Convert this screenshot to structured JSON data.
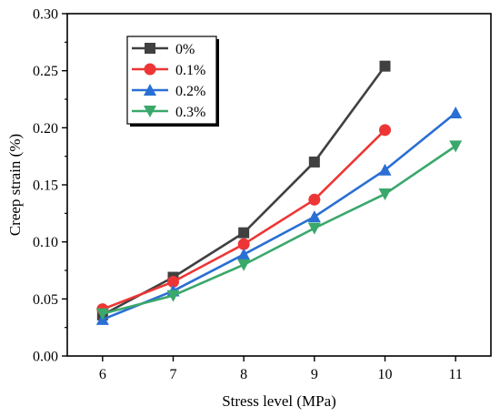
{
  "chart_data": {
    "type": "line",
    "title": "",
    "xlabel": "Stress level (MPa)",
    "ylabel": "Creep strain (%)",
    "xlim": [
      5.5,
      11.5
    ],
    "ylim": [
      0,
      0.3
    ],
    "xticks": [
      6,
      7,
      8,
      9,
      10,
      11
    ],
    "xtick_labels": [
      "6",
      "7",
      "8",
      "9",
      "10",
      "11"
    ],
    "yticks": [
      0,
      0.05,
      0.1,
      0.15,
      0.2,
      0.25,
      0.3
    ],
    "ytick_labels": [
      "0.00",
      "0.05",
      "0.10",
      "0.15",
      "0.20",
      "0.25",
      "0.30"
    ],
    "grid": false,
    "legend_position": "top-left",
    "series": [
      {
        "name": "0%",
        "color": "#404040",
        "marker": "square",
        "x": [
          6,
          7,
          8,
          9,
          10
        ],
        "y": [
          0.036,
          0.069,
          0.108,
          0.17,
          0.254
        ]
      },
      {
        "name": "0.1%",
        "color": "#ee3535",
        "marker": "circle",
        "x": [
          6,
          7,
          8,
          9,
          10
        ],
        "y": [
          0.041,
          0.065,
          0.098,
          0.137,
          0.198
        ]
      },
      {
        "name": "0.2%",
        "color": "#2a6fd4",
        "marker": "triangle-up",
        "x": [
          6,
          7,
          8,
          9,
          10,
          11
        ],
        "y": [
          0.032,
          0.057,
          0.089,
          0.122,
          0.163,
          0.213
        ]
      },
      {
        "name": "0.3%",
        "color": "#3aa86b",
        "marker": "triangle-down",
        "x": [
          6,
          7,
          8,
          9,
          10,
          11
        ],
        "y": [
          0.037,
          0.053,
          0.08,
          0.112,
          0.142,
          0.184
        ]
      }
    ]
  }
}
